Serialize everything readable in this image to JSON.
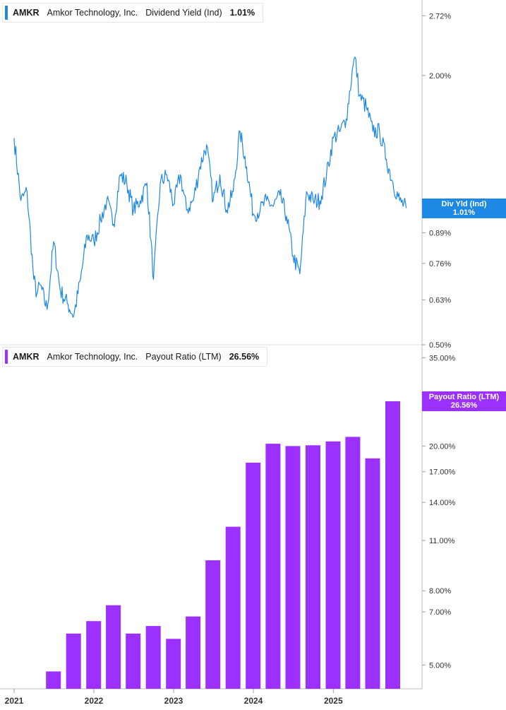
{
  "panels": [
    {
      "ticker": "AMKR",
      "company": "Amkor Technology, Inc.",
      "metric": "Dividend Yield (Ind)",
      "value": "1.01%",
      "tag_title": "Div Yld (Ind)",
      "tag_value": "1.01%",
      "color": "#1e88e5"
    },
    {
      "ticker": "AMKR",
      "company": "Amkor Technology, Inc.",
      "metric": "Payout Ratio (LTM)",
      "value": "26.56%",
      "tag_title": "Payout Ratio (LTM)",
      "tag_value": "26.56%",
      "color": "#9b30ff"
    }
  ],
  "chart_data": [
    {
      "type": "line",
      "series": [
        {
          "name": "Div Yld (Ind)",
          "x": [
            "2021-01-01",
            "2021-02-01",
            "2021-03-01",
            "2021-04-01",
            "2021-04-15",
            "2021-05-01",
            "2021-06-01",
            "2021-07-01",
            "2021-08-01",
            "2021-09-01",
            "2021-10-01",
            "2021-11-01",
            "2021-12-01",
            "2022-01-01",
            "2022-02-01",
            "2022-03-01",
            "2022-04-01",
            "2022-05-01",
            "2022-06-01",
            "2022-07-01",
            "2022-08-01",
            "2022-09-01",
            "2022-10-01",
            "2022-11-01",
            "2022-12-01",
            "2023-01-01",
            "2023-02-01",
            "2023-03-01",
            "2023-04-01",
            "2023-05-01",
            "2023-06-01",
            "2023-07-01",
            "2023-08-01",
            "2023-09-01",
            "2023-10-01",
            "2023-11-01",
            "2023-12-01",
            "2024-01-01",
            "2024-02-01",
            "2024-03-01",
            "2024-04-01",
            "2024-05-01",
            "2024-06-01",
            "2024-07-01",
            "2024-08-01",
            "2024-09-01",
            "2024-10-01",
            "2024-11-01",
            "2024-12-01",
            "2025-01-01",
            "2025-02-01",
            "2025-03-01",
            "2025-04-01",
            "2025-04-10",
            "2025-05-01",
            "2025-06-01",
            "2025-07-01",
            "2025-08-01",
            "2025-09-01",
            "2025-10-01",
            "2025-11-01",
            "2025-12-01"
          ],
          "values": [
            1.45,
            1.05,
            1.1,
            0.7,
            0.65,
            0.68,
            0.6,
            0.85,
            0.66,
            0.62,
            0.58,
            0.7,
            0.88,
            0.85,
            0.95,
            1.05,
            0.93,
            1.2,
            1.15,
            1.0,
            1.05,
            1.15,
            0.7,
            1.15,
            1.2,
            1.03,
            1.2,
            1.0,
            1.05,
            1.25,
            1.4,
            1.05,
            1.2,
            1.0,
            1.1,
            1.5,
            1.25,
            0.98,
            1.0,
            1.05,
            1.02,
            1.08,
            0.97,
            0.79,
            0.72,
            1.1,
            1.05,
            1.05,
            1.2,
            1.45,
            1.5,
            1.6,
            2.1,
            2.2,
            1.8,
            1.7,
            1.5,
            1.5,
            1.3,
            1.15,
            1.05,
            1.01
          ]
        }
      ],
      "y_ticks": [
        "2.72%",
        "2.00%",
        "0.89%",
        "0.76%",
        "0.63%",
        "0.50%"
      ],
      "ylim": [
        0.5,
        2.95
      ],
      "scale": "log"
    },
    {
      "type": "bar",
      "series": [
        {
          "name": "Payout Ratio (LTM)",
          "x": [
            "2021-06-30",
            "2021-09-30",
            "2021-12-31",
            "2022-03-31",
            "2022-06-30",
            "2022-09-30",
            "2022-12-31",
            "2023-03-31",
            "2023-06-30",
            "2023-09-30",
            "2023-12-31",
            "2024-03-31",
            "2024-06-30",
            "2024-09-30",
            "2024-12-31",
            "2025-03-31",
            "2025-06-30",
            "2025-09-30"
          ],
          "values": [
            4.8,
            6.1,
            6.6,
            7.3,
            6.1,
            6.4,
            5.9,
            6.8,
            9.7,
            12.0,
            18.0,
            20.3,
            20.0,
            20.1,
            20.6,
            21.2,
            18.5,
            26.56
          ]
        }
      ],
      "y_ticks": [
        "35.00%",
        "20.00%",
        "17.00%",
        "14.00%",
        "11.00%",
        "8.00%",
        "7.00%",
        "5.00%"
      ],
      "ylim": [
        4.3,
        36
      ],
      "scale": "log"
    }
  ],
  "x_axis": {
    "ticks": [
      "2021",
      "2022",
      "2023",
      "2024",
      "2025"
    ],
    "range": [
      "2021-01-01",
      "2025-12-31"
    ]
  }
}
